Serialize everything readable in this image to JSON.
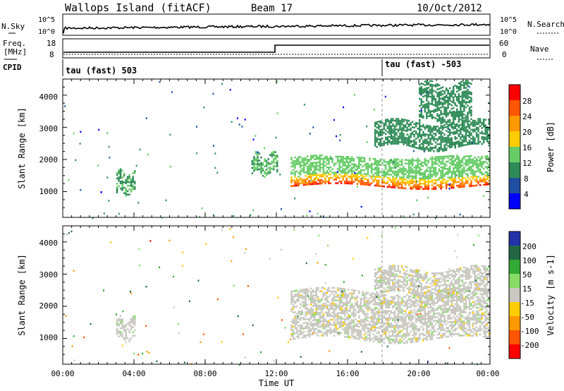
{
  "header": {
    "station": "Wallops Island (fitACF)",
    "beam": "Beam 17",
    "date": "10/Oct/2012"
  },
  "noise_panel": {
    "left_label": "N.Sky",
    "right_label": "N.Search",
    "left_ticks": [
      "10^5",
      "10^0"
    ],
    "right_ticks": [
      "10^5",
      "10^0"
    ]
  },
  "freq_panel": {
    "label_line1": "Freq.",
    "label_line2": "[MHz]",
    "cpid_label": "CPID",
    "nave_label": "Nave",
    "left_ticks": [
      "18",
      "8"
    ],
    "right_ticks": [
      "60",
      "0"
    ]
  },
  "cpid_panel": {
    "segments": [
      {
        "label": "tau (fast) 503",
        "start_hour": 0
      },
      {
        "label": "tau (fast) -503",
        "start_hour": 18
      }
    ]
  },
  "colors": {
    "power": [
      "#0000ff",
      "#1f4fa0",
      "#2e8b57",
      "#66cc66",
      "#ffcc00",
      "#ff9900",
      "#ff5500",
      "#ff0000"
    ],
    "velocity": [
      "#2233aa",
      "#226644",
      "#33aa33",
      "#88dd66",
      "#c8c8c0",
      "#ffcc00",
      "#ff9900",
      "#ff5500",
      "#ff0000"
    ],
    "axis": "#000000"
  },
  "chart_data": [
    {
      "type": "heatmap",
      "name": "power",
      "ylabel": "Slant Range [km]",
      "yticks": [
        "1000",
        "2000",
        "3000",
        "4000"
      ],
      "ylim": [
        200,
        4500
      ],
      "xlim": [
        0,
        24
      ],
      "colorbar_label": "Power [dB]",
      "colorbar_ticks": [
        "4",
        "8",
        "12",
        "16",
        "20",
        "24",
        "28"
      ],
      "colorbar_range": [
        0,
        32
      ],
      "features": [
        {
          "kind": "patch",
          "x": [
            3.0,
            4.1
          ],
          "y": [
            1000,
            1650
          ],
          "value_range": [
            6,
            20
          ]
        },
        {
          "kind": "patch",
          "x": [
            10.6,
            12.0
          ],
          "y": [
            1600,
            2200
          ],
          "value_range": [
            8,
            18
          ]
        },
        {
          "kind": "band",
          "x": [
            12.8,
            24.0
          ],
          "y": [
            1800,
            2100
          ],
          "peak_y": [
            1200,
            1600
          ],
          "value_range": [
            10,
            30
          ]
        },
        {
          "kind": "band",
          "x": [
            17.5,
            24.0
          ],
          "y": [
            2400,
            3200
          ],
          "value_range": [
            6,
            16
          ]
        },
        {
          "kind": "band",
          "x": [
            20.0,
            23.0
          ],
          "y": [
            3200,
            4400
          ],
          "value_range": [
            6,
            14
          ]
        }
      ]
    },
    {
      "type": "heatmap",
      "name": "velocity",
      "ylabel": "Slant Range [km]",
      "yticks": [
        "1000",
        "2000",
        "3000",
        "4000"
      ],
      "ylim": [
        200,
        4500
      ],
      "xlim": [
        0,
        24
      ],
      "xticks": [
        "00:00",
        "04:00",
        "08:00",
        "12:00",
        "16:00",
        "20:00",
        "00:00"
      ],
      "xlabel": "Time UT",
      "colorbar_label": "Velocity [m s-1]",
      "colorbar_ticks": [
        "200",
        "100",
        "50",
        "15",
        "-15",
        "-50",
        "-100",
        "-200"
      ],
      "colorbar_range": [
        -250,
        250
      ],
      "features": [
        {
          "kind": "patch",
          "x": [
            3.0,
            4.1
          ],
          "y": [
            1000,
            1650
          ],
          "value_range": [
            -15,
            50
          ]
        },
        {
          "kind": "band",
          "x": [
            12.8,
            24.0
          ],
          "y": [
            1000,
            2500
          ],
          "value_range": [
            -15,
            15
          ]
        },
        {
          "kind": "band",
          "x": [
            17.5,
            24.0
          ],
          "y": [
            2400,
            3200
          ],
          "value_range": [
            -15,
            15
          ]
        }
      ]
    }
  ]
}
